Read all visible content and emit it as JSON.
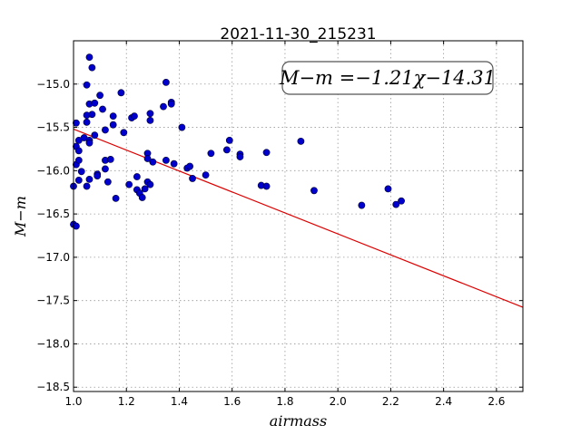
{
  "chart_data": {
    "type": "scatter",
    "title": "2021-11-30_215231",
    "xlabel": "airmass",
    "ylabel": "M−m",
    "xlim": [
      1.0,
      2.7
    ],
    "ylim": [
      -18.55,
      -14.5
    ],
    "xticks": [
      1.0,
      1.2,
      1.4,
      1.6,
      1.8,
      2.0,
      2.2,
      2.4,
      2.6
    ],
    "xtick_labels": [
      "1.0",
      "1.2",
      "1.4",
      "1.6",
      "1.8",
      "2.0",
      "2.2",
      "2.4",
      "2.6"
    ],
    "yticks": [
      -15.0,
      -15.5,
      -16.0,
      -16.5,
      -17.0,
      -17.5,
      -18.0,
      -18.5
    ],
    "ytick_labels": [
      "−15.0",
      "−15.5",
      "−16.0",
      "−16.5",
      "−17.0",
      "−17.5",
      "−18.0",
      "−18.5"
    ],
    "grid": true,
    "annotation": "M−m =−1.21χ−14.31",
    "fit": {
      "slope": -1.21,
      "intercept": -14.31,
      "color": "#dd0000"
    },
    "point_color": "#0000cc",
    "points": [
      {
        "x": 1.0,
        "y": -16.18
      },
      {
        "x": 1.0,
        "y": -16.62
      },
      {
        "x": 1.01,
        "y": -16.64
      },
      {
        "x": 1.01,
        "y": -15.45
      },
      {
        "x": 1.01,
        "y": -15.72
      },
      {
        "x": 1.01,
        "y": -15.93
      },
      {
        "x": 1.02,
        "y": -15.65
      },
      {
        "x": 1.02,
        "y": -15.77
      },
      {
        "x": 1.02,
        "y": -15.88
      },
      {
        "x": 1.02,
        "y": -16.11
      },
      {
        "x": 1.03,
        "y": -16.01
      },
      {
        "x": 1.04,
        "y": -15.62
      },
      {
        "x": 1.05,
        "y": -15.01
      },
      {
        "x": 1.05,
        "y": -15.44
      },
      {
        "x": 1.05,
        "y": -15.36
      },
      {
        "x": 1.05,
        "y": -16.18
      },
      {
        "x": 1.06,
        "y": -14.69
      },
      {
        "x": 1.06,
        "y": -15.23
      },
      {
        "x": 1.06,
        "y": -15.65
      },
      {
        "x": 1.06,
        "y": -15.68
      },
      {
        "x": 1.06,
        "y": -16.1
      },
      {
        "x": 1.07,
        "y": -14.81
      },
      {
        "x": 1.07,
        "y": -15.35
      },
      {
        "x": 1.08,
        "y": -15.59
      },
      {
        "x": 1.08,
        "y": -15.22
      },
      {
        "x": 1.09,
        "y": -16.04
      },
      {
        "x": 1.09,
        "y": -16.06
      },
      {
        "x": 1.1,
        "y": -15.13
      },
      {
        "x": 1.11,
        "y": -15.29
      },
      {
        "x": 1.12,
        "y": -15.53
      },
      {
        "x": 1.12,
        "y": -15.88
      },
      {
        "x": 1.12,
        "y": -15.98
      },
      {
        "x": 1.13,
        "y": -16.13
      },
      {
        "x": 1.14,
        "y": -15.87
      },
      {
        "x": 1.15,
        "y": -15.37
      },
      {
        "x": 1.15,
        "y": -15.47
      },
      {
        "x": 1.16,
        "y": -16.32
      },
      {
        "x": 1.18,
        "y": -15.1
      },
      {
        "x": 1.19,
        "y": -15.56
      },
      {
        "x": 1.21,
        "y": -16.16
      },
      {
        "x": 1.22,
        "y": -15.39
      },
      {
        "x": 1.23,
        "y": -15.37
      },
      {
        "x": 1.24,
        "y": -16.07
      },
      {
        "x": 1.24,
        "y": -16.22
      },
      {
        "x": 1.25,
        "y": -16.26
      },
      {
        "x": 1.26,
        "y": -16.31
      },
      {
        "x": 1.27,
        "y": -16.21
      },
      {
        "x": 1.28,
        "y": -15.8
      },
      {
        "x": 1.28,
        "y": -15.86
      },
      {
        "x": 1.28,
        "y": -16.13
      },
      {
        "x": 1.29,
        "y": -15.34
      },
      {
        "x": 1.29,
        "y": -15.42
      },
      {
        "x": 1.29,
        "y": -16.16
      },
      {
        "x": 1.3,
        "y": -15.9
      },
      {
        "x": 1.34,
        "y": -15.26
      },
      {
        "x": 1.35,
        "y": -14.98
      },
      {
        "x": 1.35,
        "y": -15.88
      },
      {
        "x": 1.37,
        "y": -15.21
      },
      {
        "x": 1.37,
        "y": -15.23
      },
      {
        "x": 1.38,
        "y": -15.92
      },
      {
        "x": 1.41,
        "y": -15.5
      },
      {
        "x": 1.43,
        "y": -15.97
      },
      {
        "x": 1.44,
        "y": -15.95
      },
      {
        "x": 1.45,
        "y": -16.09
      },
      {
        "x": 1.5,
        "y": -16.05
      },
      {
        "x": 1.52,
        "y": -15.8
      },
      {
        "x": 1.58,
        "y": -15.76
      },
      {
        "x": 1.59,
        "y": -15.65
      },
      {
        "x": 1.63,
        "y": -15.81
      },
      {
        "x": 1.63,
        "y": -15.84
      },
      {
        "x": 1.71,
        "y": -16.17
      },
      {
        "x": 1.73,
        "y": -15.79
      },
      {
        "x": 1.73,
        "y": -16.18
      },
      {
        "x": 1.86,
        "y": -15.66
      },
      {
        "x": 1.91,
        "y": -16.23
      },
      {
        "x": 2.09,
        "y": -16.4
      },
      {
        "x": 2.19,
        "y": -16.21
      },
      {
        "x": 2.22,
        "y": -16.39
      },
      {
        "x": 2.24,
        "y": -16.35
      }
    ]
  }
}
